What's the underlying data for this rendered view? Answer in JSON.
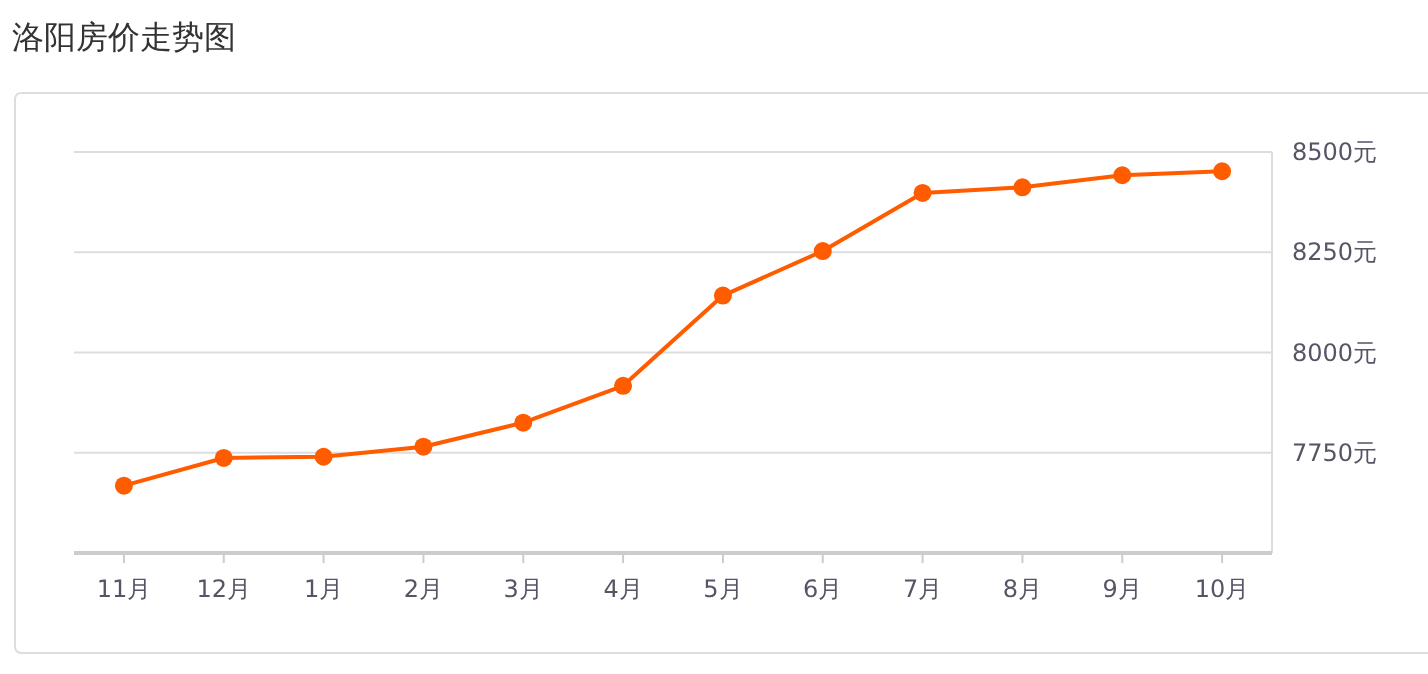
{
  "chart_data": {
    "type": "line",
    "title": "洛阳房价走势图",
    "categories": [
      "11月",
      "12月",
      "1月",
      "2月",
      "3月",
      "4月",
      "5月",
      "6月",
      "7月",
      "8月",
      "9月",
      "10月"
    ],
    "series": [
      {
        "color": "#ff5c00",
        "values": [
          7668,
          7737,
          7740,
          7765,
          7825,
          7917,
          8142,
          8253,
          8398,
          8412,
          8442,
          8452
        ]
      }
    ],
    "ylim": [
      7500,
      8500
    ],
    "yticks": [
      {
        "value": 7750,
        "label": "7750元"
      },
      {
        "value": 8000,
        "label": "8000元"
      },
      {
        "value": 8250,
        "label": "8250元"
      },
      {
        "value": 8500,
        "label": "8500元"
      }
    ],
    "grid": "y",
    "marker": "circle",
    "line_style": "solid"
  }
}
